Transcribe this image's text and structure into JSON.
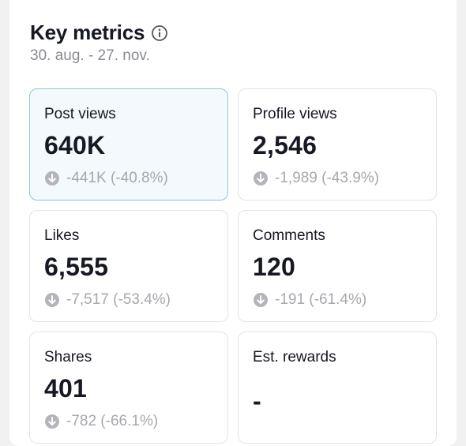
{
  "header": {
    "title": "Key metrics",
    "info_icon": "info-circle-icon",
    "date_range": "30. aug. - 27. nov."
  },
  "metrics": [
    {
      "label": "Post views",
      "value": "640K",
      "change": "-441K (-40.8%)",
      "trend": "down",
      "selected": true
    },
    {
      "label": "Profile views",
      "value": "2,546",
      "change": "-1,989 (-43.9%)",
      "trend": "down",
      "selected": false
    },
    {
      "label": "Likes",
      "value": "6,555",
      "change": "-7,517 (-53.4%)",
      "trend": "down",
      "selected": false
    },
    {
      "label": "Comments",
      "value": "120",
      "change": "-191 (-61.4%)",
      "trend": "down",
      "selected": false
    },
    {
      "label": "Shares",
      "value": "401",
      "change": "-782 (-66.1%)",
      "trend": "down",
      "selected": false
    },
    {
      "label": "Est. rewards",
      "value": "-",
      "change": "",
      "trend": "none",
      "selected": false
    }
  ],
  "colors": {
    "selected_bg": "#f3f9fd",
    "selected_border": "#8ec6cf",
    "muted_text": "#a7a8ad",
    "down_icon": "#b4b5ba"
  }
}
